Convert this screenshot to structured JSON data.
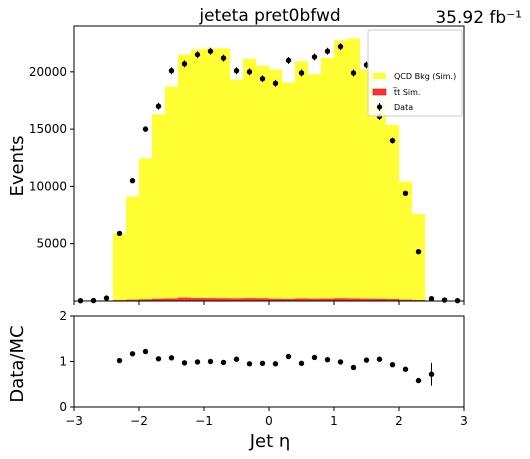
{
  "chart_data": {
    "type": "bar",
    "title": "jeteta  pret0bfwd",
    "lumi_label": "35.92 fb⁻¹",
    "xlabel": "Jet η",
    "ylabel_top": "Events",
    "ylabel_bottom": "Data/MC",
    "xlim": [
      -3,
      3
    ],
    "ylim_top": [
      0,
      24000
    ],
    "ylim_bottom": [
      0,
      2
    ],
    "x_ticks": [
      -3,
      -2,
      -1,
      0,
      1,
      2,
      3
    ],
    "x_tick_labels": [
      "−3",
      "−2",
      "−1",
      "0",
      "1",
      "2",
      "3"
    ],
    "y_ticks_top": [
      5000,
      10000,
      15000,
      20000
    ],
    "y_tick_labels_top": [
      "5000",
      "10000",
      "15000",
      "20000"
    ],
    "y_ticks_bottom": [
      0,
      1,
      2
    ],
    "y_tick_labels_bottom": [
      "0",
      "1",
      "2"
    ],
    "legend_position": "top-right",
    "legend": [
      {
        "label": "QCD Bkg (Sim.)",
        "color": "#ffff33",
        "kind": "fill"
      },
      {
        "label": "t̅t Sim.",
        "color": "#ff3333",
        "kind": "fill"
      },
      {
        "label": "Data",
        "color": "#000000",
        "kind": "marker"
      }
    ],
    "bin_edges": [
      -3.0,
      -2.8,
      -2.6,
      -2.4,
      -2.2,
      -2.0,
      -1.8,
      -1.6,
      -1.4,
      -1.2,
      -1.0,
      -0.8,
      -0.6,
      -0.4,
      -0.2,
      0.0,
      0.2,
      0.4,
      0.6,
      0.8,
      1.0,
      1.2,
      1.4,
      1.6,
      1.8,
      2.0,
      2.2,
      2.4,
      2.6,
      2.8,
      3.0
    ],
    "series": [
      {
        "name": "QCD Bkg (Sim.)",
        "color": "#ffff33",
        "values": [
          0,
          0,
          0,
          5800,
          9000,
          12300,
          16100,
          18500,
          21200,
          21700,
          21800,
          21800,
          19100,
          20900,
          20300,
          20000,
          18900,
          20700,
          19600,
          21000,
          22500,
          22700,
          20000,
          16800,
          15200,
          10300,
          7500,
          0,
          0,
          0
        ]
      },
      {
        "name": "t̅t Sim.",
        "color": "#ff3333",
        "values": [
          0,
          0,
          0,
          80,
          120,
          150,
          200,
          220,
          300,
          260,
          250,
          240,
          230,
          250,
          240,
          200,
          180,
          220,
          200,
          210,
          240,
          220,
          200,
          190,
          170,
          120,
          90,
          0,
          0,
          0
        ]
      },
      {
        "name": "Data",
        "color": "#000000",
        "x": [
          -2.9,
          -2.7,
          -2.5,
          -2.3,
          -2.1,
          -1.9,
          -1.7,
          -1.5,
          -1.3,
          -1.1,
          -0.9,
          -0.7,
          -0.5,
          -0.3,
          -0.1,
          0.1,
          0.3,
          0.5,
          0.7,
          0.9,
          1.1,
          1.3,
          1.5,
          1.7,
          1.9,
          2.1,
          2.3,
          2.5,
          2.7,
          2.9
        ],
        "values": [
          30,
          40,
          250,
          5900,
          10500,
          15000,
          17000,
          20100,
          20700,
          21500,
          21800,
          21200,
          20100,
          20000,
          19400,
          19000,
          21000,
          19900,
          21300,
          21800,
          22200,
          19900,
          20600,
          16100,
          14000,
          9400,
          4300,
          200,
          80,
          30
        ],
        "errors": [
          0,
          0,
          0,
          150,
          200,
          250,
          300,
          300,
          300,
          300,
          300,
          300,
          300,
          300,
          300,
          300,
          300,
          300,
          300,
          300,
          300,
          300,
          300,
          300,
          250,
          200,
          150,
          0,
          0,
          0
        ]
      }
    ],
    "ratio": {
      "x": [
        -2.3,
        -2.1,
        -1.9,
        -1.7,
        -1.5,
        -1.3,
        -1.1,
        -0.9,
        -0.7,
        -0.5,
        -0.3,
        -0.1,
        0.1,
        0.3,
        0.5,
        0.7,
        0.9,
        1.1,
        1.3,
        1.5,
        1.7,
        1.9,
        2.1,
        2.3,
        2.5
      ],
      "values": [
        1.02,
        1.17,
        1.22,
        1.06,
        1.08,
        0.97,
        0.99,
        1.0,
        0.98,
        1.05,
        0.95,
        0.96,
        0.95,
        1.11,
        0.96,
        1.09,
        1.04,
        0.99,
        0.87,
        1.03,
        1.05,
        0.93,
        0.83,
        0.58,
        0.72
      ],
      "errors": [
        0.03,
        0.03,
        0.03,
        0.03,
        0.03,
        0.03,
        0.03,
        0.03,
        0.03,
        0.03,
        0.03,
        0.03,
        0.03,
        0.03,
        0.03,
        0.03,
        0.03,
        0.03,
        0.03,
        0.03,
        0.03,
        0.03,
        0.04,
        0.05,
        0.25
      ]
    }
  }
}
